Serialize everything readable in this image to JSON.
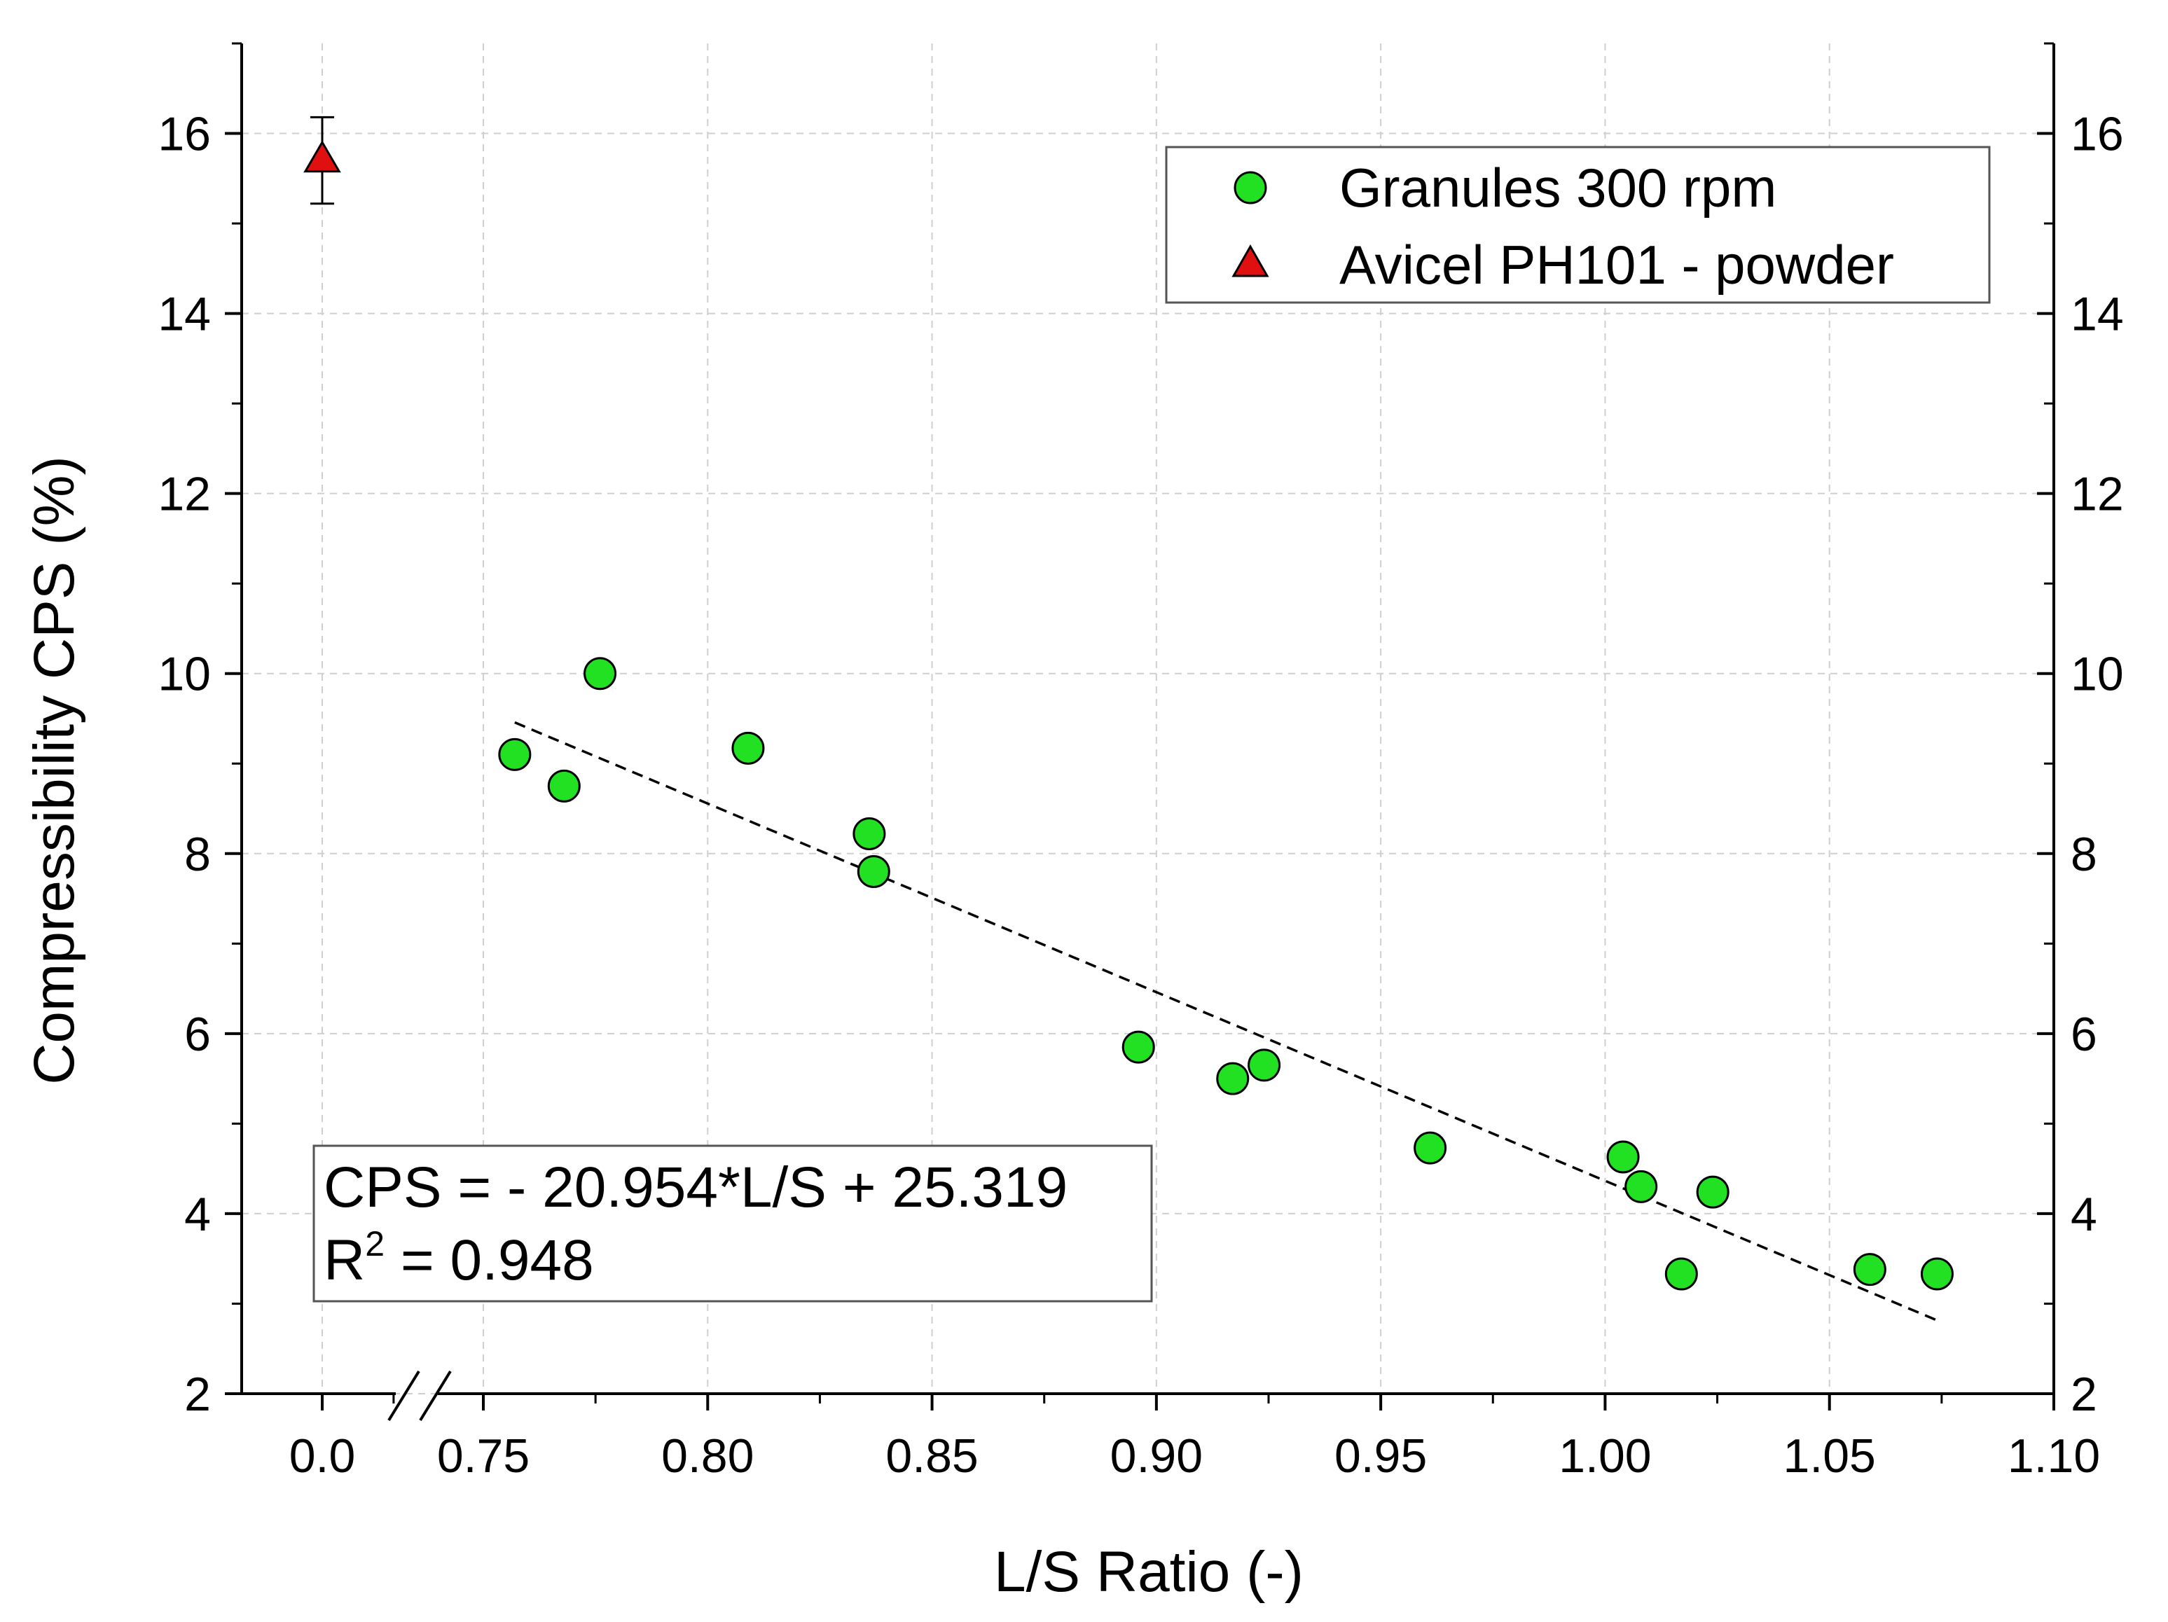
{
  "chart_data": {
    "type": "scatter",
    "xlabel": "L/S Ratio (-)",
    "ylabel": "Compressibility CPS (%)",
    "ylim": [
      2,
      17
    ],
    "y_ticks": [
      "2",
      "4",
      "6",
      "8",
      "10",
      "12",
      "14",
      "16"
    ],
    "y_tick_values": [
      2,
      4,
      6,
      8,
      10,
      12,
      14,
      16
    ],
    "x_axis_break": true,
    "x_break_tick": {
      "label": "0.0",
      "value": 0.0
    },
    "xlim": [
      0.73,
      1.1
    ],
    "x_ticks": [
      "0.75",
      "0.80",
      "0.85",
      "0.90",
      "0.95",
      "1.00",
      "1.05",
      "1.10"
    ],
    "x_tick_values": [
      0.75,
      0.8,
      0.85,
      0.9,
      0.95,
      1.0,
      1.05,
      1.1
    ],
    "grid": true,
    "legend_position": "top-right",
    "series": [
      {
        "name": "Granules 300 rpm",
        "marker": "circle",
        "color": "#22e022",
        "points": [
          {
            "x": 0.757,
            "y": 9.1
          },
          {
            "x": 0.768,
            "y": 8.75
          },
          {
            "x": 0.776,
            "y": 10.0
          },
          {
            "x": 0.809,
            "y": 9.17
          },
          {
            "x": 0.836,
            "y": 8.22
          },
          {
            "x": 0.837,
            "y": 7.8
          },
          {
            "x": 0.896,
            "y": 5.85
          },
          {
            "x": 0.917,
            "y": 5.5
          },
          {
            "x": 0.924,
            "y": 5.65
          },
          {
            "x": 0.961,
            "y": 4.73
          },
          {
            "x": 1.004,
            "y": 4.63
          },
          {
            "x": 1.008,
            "y": 4.3
          },
          {
            "x": 1.017,
            "y": 3.33
          },
          {
            "x": 1.024,
            "y": 4.24
          },
          {
            "x": 1.059,
            "y": 3.38
          },
          {
            "x": 1.074,
            "y": 3.33
          }
        ]
      },
      {
        "name": "Avicel PH101 - powder",
        "marker": "triangle",
        "color": "#e01010",
        "points": [
          {
            "x": 0.0,
            "y": 15.7,
            "error": 0.48
          }
        ]
      }
    ],
    "fit_line": {
      "slope": -20.954,
      "intercept": 25.319,
      "x_start": 0.757,
      "x_end": 1.074,
      "style": "dashed"
    },
    "equation": {
      "line1": "CPS = - 20.954*L/S + 25.319",
      "line2_prefix": "R",
      "line2_superscript": "2",
      "line2_suffix": " = 0.948"
    }
  }
}
